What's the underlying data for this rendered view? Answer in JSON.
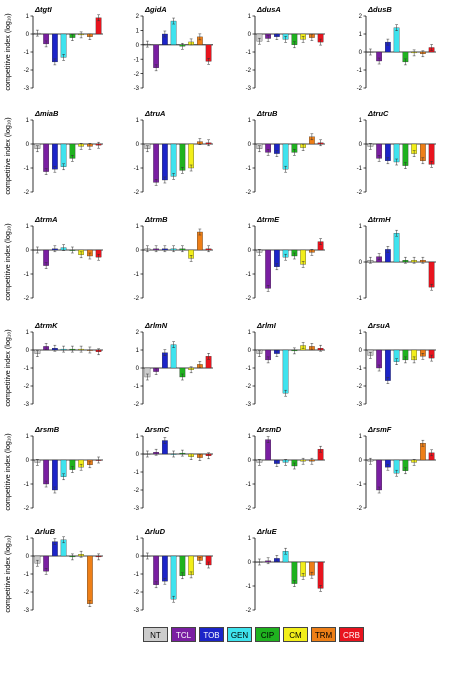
{
  "y_axis_label": "competitive index (log₁₀)",
  "legend": [
    {
      "label": "NT",
      "color": "#cccccc",
      "text_color": "#000000"
    },
    {
      "label": "TCL",
      "color": "#7a1fa2",
      "text_color": "#ffffff"
    },
    {
      "label": "TOB",
      "color": "#1c24c8",
      "text_color": "#ffffff"
    },
    {
      "label": "GEN",
      "color": "#3fe3ee",
      "text_color": "#000000"
    },
    {
      "label": "CIP",
      "color": "#1fb21f",
      "text_color": "#000000"
    },
    {
      "label": "CM",
      "color": "#f2ee1a",
      "text_color": "#000000"
    },
    {
      "label": "TRM",
      "color": "#ee7f17",
      "text_color": "#000000"
    },
    {
      "label": "CRB",
      "color": "#e8141e",
      "text_color": "#ffffff"
    }
  ],
  "chart_data": [
    {
      "type": "bar",
      "title": "ΔtgtI",
      "ylim": [
        -3,
        1
      ],
      "values": [
        0.05,
        -0.55,
        -1.55,
        -1.3,
        -0.2,
        -0.05,
        -0.15,
        0.9
      ]
    },
    {
      "type": "bar",
      "title": "ΔgidA",
      "ylim": [
        -3,
        2
      ],
      "values": [
        0.05,
        -1.6,
        0.75,
        1.65,
        -0.1,
        0.2,
        0.55,
        -1.15
      ]
    },
    {
      "type": "bar",
      "title": "ΔdusA",
      "ylim": [
        -3,
        1
      ],
      "values": [
        -0.4,
        -0.25,
        -0.15,
        -0.3,
        -0.6,
        -0.3,
        -0.2,
        -0.45
      ]
    },
    {
      "type": "bar",
      "title": "ΔdusB",
      "ylim": [
        -2,
        2
      ],
      "values": [
        0.0,
        -0.5,
        0.55,
        1.35,
        -0.55,
        -0.05,
        -0.1,
        0.25
      ]
    },
    {
      "type": "bar",
      "title": "ΔmiaB",
      "ylim": [
        -2,
        1
      ],
      "values": [
        -0.2,
        -1.15,
        -1.05,
        -0.95,
        -0.6,
        -0.1,
        -0.1,
        -0.05
      ]
    },
    {
      "type": "bar",
      "title": "ΔtruA",
      "ylim": [
        -2,
        1
      ],
      "values": [
        -0.2,
        -1.6,
        -1.5,
        -1.35,
        -1.1,
        -1.0,
        0.1,
        0.05
      ]
    },
    {
      "type": "bar",
      "title": "ΔtruB",
      "ylim": [
        -2,
        1
      ],
      "values": [
        -0.2,
        -0.35,
        -0.4,
        -1.05,
        -0.35,
        -0.15,
        0.3,
        0.05
      ]
    },
    {
      "type": "bar",
      "title": "ΔtruC",
      "ylim": [
        -2,
        1
      ],
      "values": [
        -0.1,
        -0.6,
        -0.7,
        -0.75,
        -0.9,
        -0.4,
        -0.7,
        -0.85
      ]
    },
    {
      "type": "bar",
      "title": "ΔtrmA",
      "ylim": [
        -2,
        1
      ],
      "values": [
        0.0,
        -0.65,
        0.05,
        0.1,
        0.0,
        -0.2,
        -0.25,
        -0.3
      ]
    },
    {
      "type": "bar",
      "title": "ΔtrmB",
      "ylim": [
        -2,
        1
      ],
      "values": [
        0.05,
        0.05,
        0.05,
        0.05,
        0.05,
        -0.35,
        0.75,
        0.05
      ]
    },
    {
      "type": "bar",
      "title": "ΔtrmE",
      "ylim": [
        -2,
        1
      ],
      "values": [
        -0.1,
        -1.6,
        -0.7,
        -0.3,
        -0.25,
        -0.6,
        -0.1,
        0.35
      ]
    },
    {
      "type": "bar",
      "title": "ΔtrmH",
      "ylim": [
        -1,
        1
      ],
      "values": [
        0.05,
        0.15,
        0.35,
        0.8,
        0.05,
        0.05,
        0.05,
        -0.7
      ]
    },
    {
      "type": "bar",
      "title": "ΔtrmK",
      "ylim": [
        -3,
        1
      ],
      "values": [
        -0.2,
        0.2,
        0.1,
        0.05,
        0.05,
        0.05,
        0.0,
        -0.1
      ]
    },
    {
      "type": "bar",
      "title": "ΔrlmN",
      "ylim": [
        -2,
        2
      ],
      "values": [
        -0.5,
        -0.2,
        0.85,
        1.3,
        -0.5,
        -0.1,
        0.2,
        0.65
      ]
    },
    {
      "type": "bar",
      "title": "ΔrlmI",
      "ylim": [
        -3,
        1
      ],
      "values": [
        -0.2,
        -0.55,
        -0.2,
        -2.4,
        -0.05,
        0.25,
        0.2,
        0.1
      ]
    },
    {
      "type": "bar",
      "title": "ΔrsuA",
      "ylim": [
        -3,
        1
      ],
      "values": [
        -0.3,
        -1.0,
        -1.7,
        -0.65,
        -0.55,
        -0.55,
        -0.35,
        -0.45
      ]
    },
    {
      "type": "bar",
      "title": "ΔrsmB",
      "ylim": [
        -2,
        1
      ],
      "values": [
        -0.1,
        -1.0,
        -1.25,
        -0.7,
        -0.4,
        -0.3,
        -0.2,
        0.0
      ]
    },
    {
      "type": "bar",
      "title": "ΔrsmC",
      "ylim": [
        -3,
        1
      ],
      "values": [
        0.0,
        0.1,
        0.75,
        0.0,
        0.05,
        -0.15,
        -0.2,
        -0.1
      ]
    },
    {
      "type": "bar",
      "title": "ΔrsmD",
      "ylim": [
        -2,
        1
      ],
      "values": [
        -0.1,
        0.85,
        -0.15,
        -0.1,
        -0.25,
        -0.05,
        -0.05,
        0.45
      ]
    },
    {
      "type": "bar",
      "title": "ΔrsmF",
      "ylim": [
        -2,
        1
      ],
      "values": [
        -0.05,
        -1.25,
        -0.3,
        -0.55,
        -0.45,
        -0.1,
        0.7,
        0.3
      ]
    },
    {
      "type": "bar",
      "title": "ΔrluB",
      "ylim": [
        -3,
        1
      ],
      "values": [
        -0.4,
        -0.85,
        0.8,
        0.9,
        -0.05,
        0.1,
        -2.65,
        -0.05
      ]
    },
    {
      "type": "bar",
      "title": "ΔrluD",
      "ylim": [
        -3,
        1
      ],
      "values": [
        0.0,
        -1.6,
        -1.4,
        -2.4,
        -1.1,
        -1.05,
        -0.25,
        -0.5
      ]
    },
    {
      "type": "bar",
      "title": "ΔrluE",
      "ylim": [
        -2,
        1
      ],
      "values": [
        0.0,
        0.05,
        0.15,
        0.45,
        -0.9,
        -0.6,
        -0.55,
        -1.1
      ]
    }
  ]
}
